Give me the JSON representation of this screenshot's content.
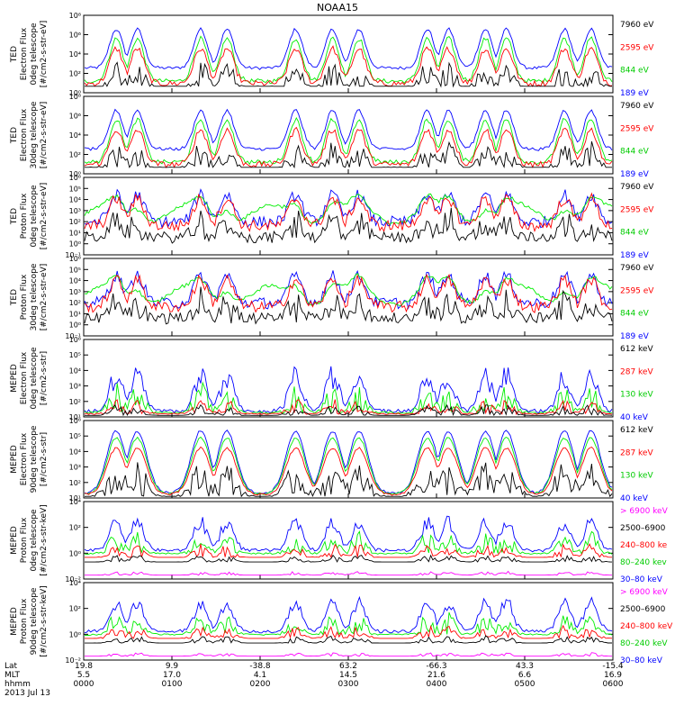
{
  "title": "NOAA15",
  "colors": {
    "blue": "#0000ff",
    "red": "#ff0000",
    "green": "#00ee00",
    "black": "#000000",
    "magenta": "#ff00ff"
  },
  "time_axis": {
    "rows": [
      {
        "label": "Lat",
        "values": [
          "19.8",
          "9.9",
          "-38.8",
          "63.2",
          "-66.3",
          "43.3",
          "-15.4"
        ]
      },
      {
        "label": "MLT",
        "values": [
          "5.5",
          "17.0",
          "4.1",
          "14.5",
          "21.6",
          "6.6",
          "16.9"
        ]
      },
      {
        "label": "hhmm",
        "values": [
          "0000",
          "0100",
          "0200",
          "0300",
          "0400",
          "0500",
          "0600"
        ]
      }
    ],
    "date": "2013 Jul 13"
  },
  "chart_data": [
    {
      "type": "line",
      "instrument": "TED",
      "quantity": "Electron Flux",
      "telescope": "0deg telescope",
      "units": "[#/cm2-s-str-eV]",
      "ylabel_lines": [
        "TED",
        "Electron Flux",
        "0deg telescope",
        "[#/cm2-s-str-eV]"
      ],
      "yticks": [
        "10⁰",
        "10²",
        "10⁴",
        "10⁶",
        "10⁸"
      ],
      "ylim_exp": [
        0,
        8
      ],
      "series": [
        {
          "name": "7960 eV",
          "color": "black"
        },
        {
          "name": "2595 eV",
          "color": "red"
        },
        {
          "name": "844 eV",
          "color": "green"
        },
        {
          "name": "189 eV",
          "color": "blue"
        }
      ]
    },
    {
      "type": "line",
      "instrument": "TED",
      "quantity": "Electron Flux",
      "telescope": "30deg telescope",
      "units": "[#/cm2-s-str-eV]",
      "ylabel_lines": [
        "TED",
        "Electron Flux",
        "30deg telescope",
        "[#/cm2-s-str-eV]"
      ],
      "yticks": [
        "10⁰",
        "10²",
        "10⁴",
        "10⁶",
        "10⁸"
      ],
      "ylim_exp": [
        0,
        8
      ],
      "series": [
        {
          "name": "7960 eV",
          "color": "black"
        },
        {
          "name": "2595 eV",
          "color": "red"
        },
        {
          "name": "844 eV",
          "color": "green"
        },
        {
          "name": "189 eV",
          "color": "blue"
        }
      ]
    },
    {
      "type": "line",
      "instrument": "TED",
      "quantity": "Proton Flux",
      "telescope": "0deg telescope",
      "units": "[#/cm2-s-str-eV]",
      "ylabel_lines": [
        "TED",
        "Proton Flux",
        "0deg telescope",
        "[#/cm2-s-str-eV]"
      ],
      "yticks": [
        "10⁻¹",
        "10⁰",
        "10¹",
        "10²",
        "10³",
        "10⁴",
        "10⁵",
        "10⁶"
      ],
      "ylim_exp": [
        -1,
        6
      ],
      "series": [
        {
          "name": "7960 eV",
          "color": "black"
        },
        {
          "name": "2595 eV",
          "color": "red"
        },
        {
          "name": "844 eV",
          "color": "green"
        },
        {
          "name": "189 eV",
          "color": "blue"
        }
      ]
    },
    {
      "type": "line",
      "instrument": "TED",
      "quantity": "Proton Flux",
      "telescope": "30deg telescope",
      "units": "[#/cm2-s-str-eV]",
      "ylabel_lines": [
        "TED",
        "Proton Flux",
        "30deg telescope",
        "[#/cm2-s-str-eV]"
      ],
      "yticks": [
        "10⁻¹",
        "10⁰",
        "10¹",
        "10²",
        "10³",
        "10⁴",
        "10⁵",
        "10⁶"
      ],
      "ylim_exp": [
        -1,
        6
      ],
      "series": [
        {
          "name": "7960 eV",
          "color": "black"
        },
        {
          "name": "2595 eV",
          "color": "red"
        },
        {
          "name": "844 eV",
          "color": "green"
        },
        {
          "name": "189 eV",
          "color": "blue"
        }
      ]
    },
    {
      "type": "line",
      "instrument": "MEPED",
      "quantity": "Electron Flux",
      "telescope": "0deg telescope",
      "units": "[#/cm2-s-str]",
      "ylabel_lines": [
        "MEPED",
        "Electron Flux",
        "0deg telescope",
        "[#/cm2-s-str]"
      ],
      "yticks": [
        "10¹",
        "10²",
        "10³",
        "10⁴",
        "10⁵",
        "10⁶"
      ],
      "ylim_exp": [
        1,
        6
      ],
      "series": [
        {
          "name": "612 keV",
          "color": "black"
        },
        {
          "name": "287 keV",
          "color": "red"
        },
        {
          "name": "130 keV",
          "color": "green"
        },
        {
          "name": "40 keV",
          "color": "blue"
        }
      ]
    },
    {
      "type": "line",
      "instrument": "MEPED",
      "quantity": "Electron Flux",
      "telescope": "90deg telescope",
      "units": "[#/cm2-s-str]",
      "ylabel_lines": [
        "MEPED",
        "Electron Flux",
        "90deg telescope",
        "[#/cm2-s-str]"
      ],
      "yticks": [
        "10¹",
        "10²",
        "10³",
        "10⁴",
        "10⁵",
        "10⁶"
      ],
      "ylim_exp": [
        1,
        6
      ],
      "series": [
        {
          "name": "612 keV",
          "color": "black"
        },
        {
          "name": "287 keV",
          "color": "red"
        },
        {
          "name": "130 keV",
          "color": "green"
        },
        {
          "name": "40 keV",
          "color": "blue"
        }
      ]
    },
    {
      "type": "line",
      "instrument": "MEPED",
      "quantity": "Proton Flux",
      "telescope": "0deg telescope",
      "units": "[#/cm2-s-str-keV]",
      "ylabel_lines": [
        "MEPED",
        "Proton Flux",
        "0deg telescope",
        "[#/cm2-s-str-keV]"
      ],
      "yticks": [
        "10⁻²",
        "10⁰",
        "10²",
        "10⁴"
      ],
      "ylim_exp": [
        -2,
        4
      ],
      "series": [
        {
          "name": "> 6900 keV",
          "color": "magenta"
        },
        {
          "name": "2500–6900",
          "color": "black"
        },
        {
          "name": "240–800 ke",
          "color": "red"
        },
        {
          "name": "80–240 kev",
          "color": "green"
        },
        {
          "name": "30–80 keV",
          "color": "blue"
        }
      ]
    },
    {
      "type": "line",
      "instrument": "MEPED",
      "quantity": "Proton Flux",
      "telescope": "90deg telescope",
      "units": "[#/cm2-s-str-keV]",
      "ylabel_lines": [
        "MEPED",
        "Proton Flux",
        "90deg telescope",
        "[#/cm2-s-str-keV]"
      ],
      "yticks": [
        "10⁻²",
        "10⁰",
        "10²",
        "10⁴"
      ],
      "ylim_exp": [
        -2,
        4
      ],
      "series": [
        {
          "name": "> 6900 keV",
          "color": "magenta"
        },
        {
          "name": "2500–6900",
          "color": "black"
        },
        {
          "name": "240–800 keV",
          "color": "red"
        },
        {
          "name": "80–240 keV",
          "color": "green"
        },
        {
          "name": "30–80 keV",
          "color": "blue"
        }
      ]
    }
  ]
}
